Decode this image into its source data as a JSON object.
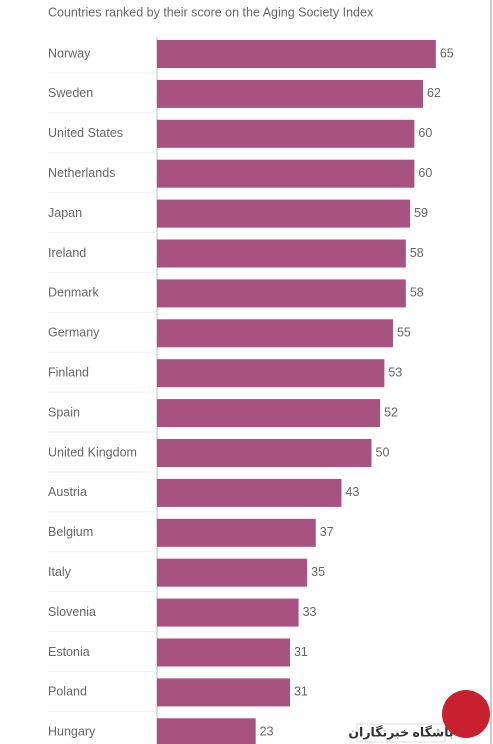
{
  "chart_data": {
    "type": "bar",
    "orientation": "horizontal",
    "title": "Countries ranked by their score on the Aging Society Index",
    "categories": [
      "Norway",
      "Sweden",
      "United States",
      "Netherlands",
      "Japan",
      "Ireland",
      "Denmark",
      "Germany",
      "Finland",
      "Spain",
      "United Kingdom",
      "Austria",
      "Belgium",
      "Italy",
      "Slovenia",
      "Estonia",
      "Poland",
      "Hungary"
    ],
    "values": [
      65,
      62,
      60,
      60,
      59,
      58,
      58,
      55,
      53,
      52,
      50,
      43,
      37,
      35,
      33,
      31,
      31,
      23
    ],
    "color": "#a8527f"
  },
  "watermark": "باشگاه خبرنگاران"
}
